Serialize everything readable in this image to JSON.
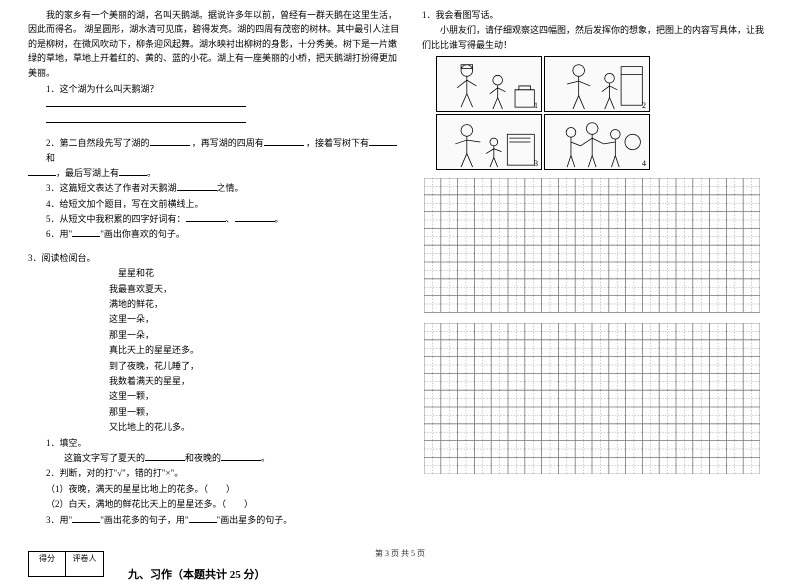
{
  "left": {
    "passage_p1": "我的家乡有一个美丽的湖，名叫天鹅湖。据说许多年以前，曾经有一群天鹅在这里生活，因此而得名。    湖呈圆形，湖水清可见底，碧得发亮。湖的四周有茂密的树林。其中最引人注目的是柳树，在微风吹动下，柳条迎风起舞。湖水映衬出柳树的身影，十分秀美。树下是一片嫩绿的草地，草地上开着红的、黄的、蓝的小花。湖上有一座美丽的小桥，把天鹅湖打扮得更加美丽。",
    "q1": "1．这个湖为什么叫天鹅湖？",
    "q2_a": "2．第二自然段先写了湖的",
    "q2_b": "，再写湖的四周有",
    "q2_c": "，接着写树下有",
    "q2_d": "和",
    "q2_e": "，最后写湖上有",
    "q2_f": "。",
    "q3_a": "3．这篇短文表达了作者对天鹅湖",
    "q3_b": "之情。",
    "q4": "4．给短文加个题目，写在文前横线上。",
    "q5_a": "5．从短文中我积累的四字好词有：",
    "q5_b": "、",
    "q5_c": "。",
    "q6_a": "6．用\"",
    "q6_b": "\"画出你喜欢的句子。",
    "q3num": "3．阅读检阅台。",
    "poem_title": "星星和花",
    "poem": [
      "我最喜欢夏天，",
      "满地的鲜花，",
      "这里一朵，",
      "那里一朵，",
      "真比天上的星星还多。",
      "到了夜晚，花儿睡了，",
      "我数着满天的星星，",
      "这里一颗，",
      "那里一颗，",
      "又比地上的花儿多。"
    ],
    "pq1": "1．填空。",
    "pq1_a": "这篇文字写了夏天的",
    "pq1_b": "和夜晚的",
    "pq1_c": "。",
    "pq2": "2．判断，对的打\"√\"，错的打\"×\"。",
    "pq2_1": "（1）夜晚，满天的星星比地上的花多。（　　）",
    "pq2_2": "（2）白天，满地的鲜花比天上的星星还多。（　　）",
    "pq3_a": "3．用\"",
    "pq3_b": "\"画出花多的句子，用\"",
    "pq3_c": "\"画出星多的句子。",
    "score_a": "得分",
    "score_b": "评卷人",
    "section9": "九、习作（本题共计 25 分）"
  },
  "right": {
    "q1": "1．我会看图写话。",
    "intro": "小朋友们，请仔细观察这四幅图，然后发挥你的想象，把图上的内容写具体，让我们比比谁写得最生动！",
    "pic_nums": [
      "1",
      "2",
      "3",
      "4"
    ],
    "grid": {
      "cols": 20,
      "rows1": 8,
      "rows2": 9,
      "cell": 16.8,
      "stroke": "#777"
    }
  },
  "footer": "第 3 页 共 5 页"
}
